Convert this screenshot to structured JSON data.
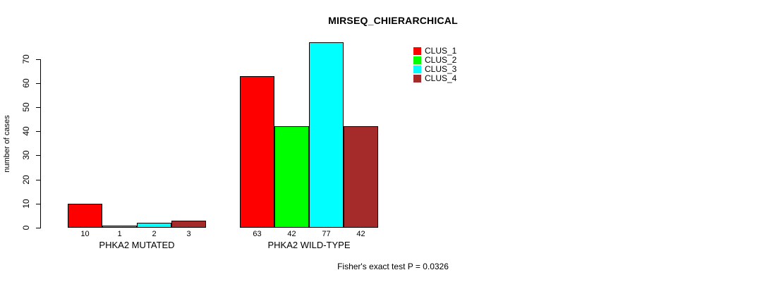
{
  "chart_data": {
    "type": "bar",
    "title": "MIRSEQ_CHIERARCHICAL",
    "ylabel": "number of cases",
    "xlabel": "",
    "footer": "Fisher's exact test P = 0.0326",
    "categories": [
      "PHKA2 MUTATED",
      "PHKA2 WILD-TYPE"
    ],
    "series": [
      {
        "name": "CLUS_1",
        "color": "#ff0000",
        "values": [
          10,
          63
        ]
      },
      {
        "name": "CLUS_2",
        "color": "#00ff00",
        "values": [
          1,
          42
        ]
      },
      {
        "name": "CLUS_3",
        "color": "#00ffff",
        "values": [
          2,
          77
        ]
      },
      {
        "name": "CLUS_4",
        "color": "#a52a2a",
        "values": [
          3,
          42
        ]
      }
    ],
    "bar_value_labels": [
      [
        "10",
        "1",
        "2",
        "3"
      ],
      [
        "63",
        "42",
        "77",
        "42"
      ]
    ],
    "y_ticks": [
      0,
      10,
      20,
      30,
      40,
      50,
      60,
      70
    ],
    "ylim": [
      0,
      77
    ],
    "grid": false,
    "legend_position": "top-right-inside",
    "bar_border_color": "#000000",
    "background_color": "#ffffff"
  }
}
